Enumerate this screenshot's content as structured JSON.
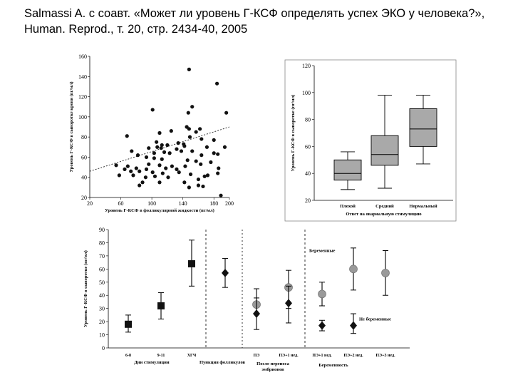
{
  "header": {
    "title": "Salmassi A.  с соавт. «Может ли уровень Г-КСФ определять успех ЭКО у человека?», Human. Reprod., т. 20, стр. 2434-40, 2005"
  },
  "chart_data": [
    {
      "type": "scatter",
      "xlabel": "Уровень Г-КСФ в фолликулярной жидкости (пг/мл)",
      "ylabel": "Уровень Г-КСФ в сыворотке крови (пг/мл)",
      "xlim": [
        20,
        200
      ],
      "ylim": [
        20,
        160
      ],
      "xticks": [
        20,
        60,
        100,
        140,
        180,
        200
      ],
      "yticks": [
        20,
        40,
        60,
        80,
        100,
        120,
        140,
        160
      ],
      "trendline": {
        "x": [
          20,
          200
        ],
        "y": [
          46,
          90
        ]
      },
      "points": [
        [
          148,
          147
        ],
        [
          184,
          133
        ],
        [
          152,
          110
        ],
        [
          101,
          107
        ],
        [
          147,
          104
        ],
        [
          196,
          104
        ],
        [
          145,
          90
        ],
        [
          148,
          88
        ],
        [
          162,
          88
        ],
        [
          157,
          85
        ],
        [
          125,
          86
        ],
        [
          110,
          84
        ],
        [
          68,
          81
        ],
        [
          149,
          80
        ],
        [
          164,
          78
        ],
        [
          180,
          77
        ],
        [
          106,
          75
        ],
        [
          113,
          72
        ],
        [
          120,
          72
        ],
        [
          134,
          74
        ],
        [
          141,
          73
        ],
        [
          142,
          71
        ],
        [
          171,
          70
        ],
        [
          194,
          70
        ],
        [
          96,
          69
        ],
        [
          107,
          70
        ],
        [
          112,
          69
        ],
        [
          74,
          66
        ],
        [
          103,
          64
        ],
        [
          116,
          65
        ],
        [
          123,
          64
        ],
        [
          132,
          68
        ],
        [
          138,
          66
        ],
        [
          152,
          66
        ],
        [
          180,
          64
        ],
        [
          164,
          62
        ],
        [
          185,
          63
        ],
        [
          82,
          62
        ],
        [
          93,
          60
        ],
        [
          103,
          59
        ],
        [
          113,
          58
        ],
        [
          146,
          57
        ],
        [
          157,
          56
        ],
        [
          176,
          55
        ],
        [
          54,
          52
        ],
        [
          69,
          51
        ],
        [
          96,
          53
        ],
        [
          110,
          52
        ],
        [
          126,
          51
        ],
        [
          143,
          51
        ],
        [
          163,
          53
        ],
        [
          65,
          48
        ],
        [
          80,
          49
        ],
        [
          93,
          48
        ],
        [
          118,
          49
        ],
        [
          132,
          48
        ],
        [
          186,
          49
        ],
        [
          172,
          42
        ],
        [
          168,
          41
        ],
        [
          73,
          46
        ],
        [
          84,
          46
        ],
        [
          101,
          45
        ],
        [
          114,
          44
        ],
        [
          135,
          45
        ],
        [
          150,
          43
        ],
        [
          185,
          44
        ],
        [
          58,
          42
        ],
        [
          76,
          42
        ],
        [
          92,
          40
        ],
        [
          104,
          41
        ],
        [
          121,
          40
        ],
        [
          160,
          38
        ],
        [
          88,
          35
        ],
        [
          110,
          35
        ],
        [
          142,
          35
        ],
        [
          84,
          32
        ],
        [
          160,
          32
        ],
        [
          166,
          31
        ],
        [
          148,
          30
        ],
        [
          189,
          22
        ]
      ]
    },
    {
      "type": "box",
      "xlabel": "Ответ на овариальную стимуляцию",
      "ylabel": "Уровень Г-КСФ в сыворотке (пг/мл)",
      "ylim": [
        20,
        120
      ],
      "yticks": [
        20,
        40,
        60,
        80,
        100,
        120
      ],
      "categories": [
        "Плохой",
        "Средний",
        "Нормальный"
      ],
      "boxes": [
        {
          "whisker_low": 28,
          "q1": 35,
          "median": 40,
          "q3": 50,
          "whisker_high": 56
        },
        {
          "whisker_low": 29,
          "q1": 46,
          "median": 54,
          "q3": 68,
          "whisker_high": 98
        },
        {
          "whisker_low": 47,
          "q1": 60,
          "median": 73,
          "q3": 88,
          "whisker_high": 98
        }
      ]
    },
    {
      "type": "errorbar",
      "ylabel": "Уровень Г-КСФ в сыворотке (пг/мл)",
      "ylim": [
        0,
        90
      ],
      "yticks": [
        0,
        10,
        20,
        30,
        40,
        50,
        60,
        70,
        80,
        90
      ],
      "categories": [
        "6-8",
        "9-11",
        "ХГЧ",
        "",
        "ПЭ",
        "ПЭ+1 нед.",
        "ПЭ+1 нед.",
        "ПЭ+2 нед.",
        "ПЭ+3 нед."
      ],
      "groups": [
        "Дни стимуляции",
        "Пункция фолликулов",
        "После переноса эмбрионов",
        "Беременность"
      ],
      "legend": {
        "pregnant": "Беременные",
        "not_pregnant": "Не беременные"
      },
      "series": [
        {
          "name": "Стимуляция",
          "marker": "square",
          "points": [
            [
              0,
              18,
              12,
              25
            ],
            [
              1,
              32,
              22,
              42
            ],
            [
              2,
              64,
              47,
              82
            ]
          ]
        },
        {
          "name": "Пункция",
          "marker": "diamond",
          "points": [
            [
              3,
              57,
              46,
              68
            ]
          ]
        },
        {
          "name": "Беременные",
          "marker": "circle",
          "points": [
            [
              4,
              33,
              26,
              45
            ],
            [
              5,
              46,
              30,
              59
            ],
            [
              6,
              41,
              32,
              50
            ],
            [
              7,
              60,
              44,
              76
            ],
            [
              8,
              57,
              40,
              74
            ]
          ]
        },
        {
          "name": "Не беременные",
          "marker": "diamond",
          "points": [
            [
              4,
              26,
              14,
              38
            ],
            [
              5,
              34,
              19,
              47
            ],
            [
              6,
              17,
              13,
              21
            ],
            [
              7,
              17,
              11,
              26
            ]
          ]
        }
      ]
    }
  ]
}
